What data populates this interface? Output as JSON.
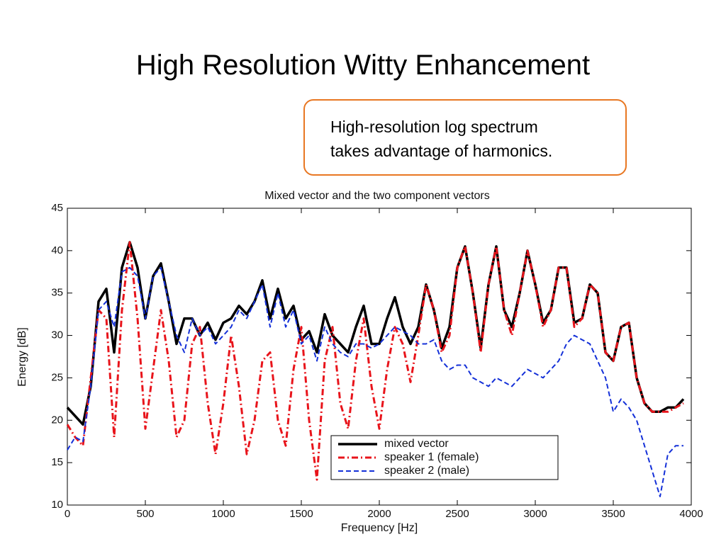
{
  "slide_title": "High Resolution Witty Enhancement",
  "callout": [
    "High-resolution log spectrum",
    "takes advantage of harmonics."
  ],
  "chart_data": {
    "type": "line",
    "title": "Mixed vector and the two component vectors",
    "xlabel": "Frequency [Hz]",
    "ylabel": "Energy [dB]",
    "xlim": [
      0,
      4000
    ],
    "xticks": [
      0,
      500,
      1000,
      1500,
      2000,
      2500,
      3000,
      3500,
      4000
    ],
    "ylim": [
      10,
      45
    ],
    "yticks": [
      10,
      15,
      20,
      25,
      30,
      35,
      40,
      45
    ],
    "x": [
      0,
      50,
      100,
      150,
      200,
      250,
      300,
      350,
      400,
      450,
      500,
      550,
      600,
      650,
      700,
      750,
      800,
      850,
      900,
      950,
      1000,
      1050,
      1100,
      1150,
      1200,
      1250,
      1300,
      1350,
      1400,
      1450,
      1500,
      1550,
      1600,
      1650,
      1700,
      1750,
      1800,
      1850,
      1900,
      1950,
      2000,
      2050,
      2100,
      2150,
      2200,
      2250,
      2300,
      2350,
      2400,
      2450,
      2500,
      2550,
      2600,
      2650,
      2700,
      2750,
      2800,
      2850,
      2900,
      2950,
      3000,
      3050,
      3100,
      3150,
      3200,
      3250,
      3300,
      3350,
      3400,
      3450,
      3500,
      3550,
      3600,
      3650,
      3700,
      3750,
      3800,
      3850,
      3900,
      3950
    ],
    "series": [
      {
        "name": "mixed vector",
        "color": "#000000",
        "style": "solid",
        "values": [
          21.5,
          20.5,
          19.5,
          24,
          34,
          35.5,
          28,
          38,
          41,
          38,
          32,
          37,
          38.5,
          34,
          29,
          32,
          32,
          30,
          31.5,
          29.5,
          31.5,
          32,
          33.5,
          32.5,
          34,
          36.5,
          32,
          35.5,
          32,
          33.5,
          29.5,
          30.5,
          28,
          32.5,
          30,
          29,
          28,
          31,
          33.5,
          29,
          29,
          32,
          34.5,
          31,
          29,
          31,
          36,
          33,
          28.5,
          31,
          38,
          40.5,
          35,
          28.5,
          36,
          40.5,
          33,
          31,
          35,
          40,
          36,
          31.5,
          33,
          38,
          38,
          31.5,
          32,
          36,
          35,
          28,
          27,
          31,
          31.5,
          25,
          22,
          21,
          21,
          21.5,
          21.5,
          22.5
        ]
      },
      {
        "name": "speaker 1 (female)",
        "color": "#e8141b",
        "style": "dashdot",
        "values": [
          19.5,
          18,
          17,
          25,
          33,
          32,
          18,
          33,
          41,
          32,
          19,
          26,
          33,
          27,
          18,
          20,
          29,
          31,
          22,
          16,
          22,
          30,
          24,
          16,
          20,
          27,
          28,
          20,
          17,
          26,
          31,
          20,
          13,
          27,
          31,
          22,
          19,
          27,
          32,
          24,
          19,
          26,
          31,
          29,
          24.5,
          30,
          36,
          33,
          28,
          30,
          38,
          40.5,
          35,
          28,
          36,
          40.5,
          33,
          30,
          35,
          40,
          36,
          31,
          33,
          38,
          38,
          31,
          32,
          36,
          35,
          28,
          27,
          31,
          31.5,
          25,
          22,
          21,
          21,
          21,
          21.5,
          22
        ]
      },
      {
        "name": "speaker 2 (male)",
        "color": "#1430d8",
        "style": "dashed",
        "values": [
          16.5,
          18,
          17.5,
          24,
          33,
          34,
          31,
          37.5,
          38,
          37,
          32,
          37,
          38,
          34,
          30,
          28,
          32,
          30,
          31,
          29,
          30,
          31,
          33,
          32,
          34,
          36,
          31,
          35,
          31,
          33,
          29,
          30,
          27,
          31,
          29,
          28,
          27.5,
          29,
          29,
          28.5,
          29,
          30,
          31,
          30.5,
          30,
          29,
          29,
          29.5,
          27,
          26,
          26.5,
          26.5,
          25,
          24.5,
          24,
          25,
          24.5,
          24,
          25,
          26,
          25.5,
          25,
          26,
          27,
          29,
          30,
          29.5,
          29,
          27,
          25,
          21,
          22.5,
          21.5,
          20,
          17,
          14,
          11,
          16,
          17,
          17
        ]
      }
    ]
  }
}
